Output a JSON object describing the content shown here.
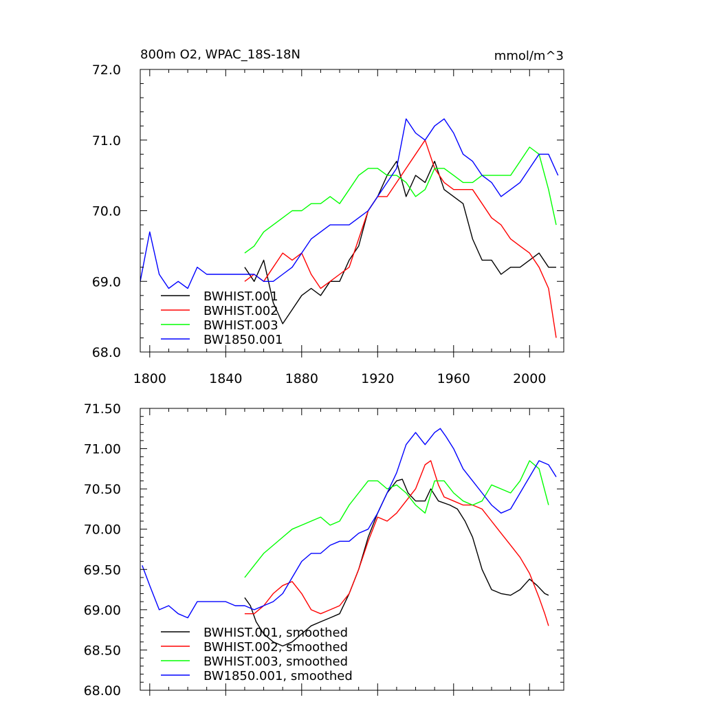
{
  "figure": {
    "title_left": "800m O2, WPAC_18S-18N",
    "title_right": "mmol/m^3"
  },
  "chart_data": [
    {
      "type": "line",
      "title": "800m O2, WPAC_18S-18N",
      "units": "mmol/m^3",
      "xlim": [
        1795,
        2018
      ],
      "ylim": [
        68.0,
        72.0
      ],
      "xticks": [
        1800,
        1840,
        1880,
        1920,
        1960,
        2000
      ],
      "xtick_labels": [
        "1800",
        "1840",
        "1880",
        "1920",
        "1960",
        "2000"
      ],
      "yticks": [
        68.0,
        69.0,
        70.0,
        71.0,
        72.0
      ],
      "ytick_labels": [
        "68.0",
        "69.0",
        "70.0",
        "71.0",
        "72.0"
      ],
      "legend_position": "lower-left",
      "series": [
        {
          "name": "BWHIST.001",
          "color": "#000000",
          "x": [
            1850,
            1855,
            1860,
            1865,
            1870,
            1875,
            1880,
            1885,
            1890,
            1895,
            1900,
            1905,
            1910,
            1915,
            1920,
            1925,
            1930,
            1935,
            1940,
            1945,
            1950,
            1955,
            1960,
            1965,
            1970,
            1975,
            1980,
            1985,
            1990,
            1995,
            2000,
            2005,
            2010,
            2014
          ],
          "values": [
            69.2,
            69.0,
            69.3,
            68.7,
            68.4,
            68.6,
            68.8,
            68.9,
            68.8,
            69.0,
            69.0,
            69.3,
            69.5,
            70.0,
            70.2,
            70.5,
            70.7,
            70.2,
            70.5,
            70.4,
            70.7,
            70.3,
            70.2,
            70.1,
            69.6,
            69.3,
            69.3,
            69.1,
            69.2,
            69.2,
            69.3,
            69.4,
            69.2,
            69.2
          ]
        },
        {
          "name": "BWHIST.002",
          "color": "#ff0000",
          "x": [
            1850,
            1855,
            1860,
            1865,
            1870,
            1875,
            1880,
            1885,
            1890,
            1895,
            1900,
            1905,
            1910,
            1915,
            1920,
            1925,
            1930,
            1935,
            1940,
            1945,
            1950,
            1955,
            1960,
            1965,
            1970,
            1975,
            1980,
            1985,
            1990,
            1995,
            2000,
            2005,
            2010,
            2014
          ],
          "values": [
            69.0,
            69.1,
            69.0,
            69.2,
            69.4,
            69.3,
            69.4,
            69.1,
            68.9,
            69.0,
            69.1,
            69.2,
            69.6,
            70.0,
            70.2,
            70.2,
            70.4,
            70.6,
            70.8,
            71.0,
            70.6,
            70.4,
            70.3,
            70.3,
            70.3,
            70.1,
            69.9,
            69.8,
            69.6,
            69.5,
            69.4,
            69.2,
            68.9,
            68.2
          ]
        },
        {
          "name": "BWHIST.003",
          "color": "#00ff00",
          "x": [
            1850,
            1855,
            1860,
            1865,
            1870,
            1875,
            1880,
            1885,
            1890,
            1895,
            1900,
            1905,
            1910,
            1915,
            1920,
            1925,
            1930,
            1935,
            1940,
            1945,
            1950,
            1955,
            1960,
            1965,
            1970,
            1975,
            1980,
            1985,
            1990,
            1995,
            2000,
            2005,
            2010,
            2014
          ],
          "values": [
            69.4,
            69.5,
            69.7,
            69.8,
            69.9,
            70.0,
            70.0,
            70.1,
            70.1,
            70.2,
            70.1,
            70.3,
            70.5,
            70.6,
            70.6,
            70.5,
            70.5,
            70.4,
            70.2,
            70.3,
            70.6,
            70.6,
            70.5,
            70.4,
            70.4,
            70.5,
            70.5,
            70.5,
            70.5,
            70.7,
            70.9,
            70.8,
            70.3,
            69.8
          ]
        },
        {
          "name": "BW1850.001",
          "color": "#0000ff",
          "x": [
            1795,
            1800,
            1805,
            1810,
            1815,
            1820,
            1825,
            1830,
            1835,
            1840,
            1845,
            1850,
            1855,
            1860,
            1865,
            1870,
            1875,
            1880,
            1885,
            1890,
            1895,
            1900,
            1905,
            1910,
            1915,
            1920,
            1925,
            1930,
            1935,
            1940,
            1945,
            1950,
            1955,
            1960,
            1965,
            1970,
            1975,
            1980,
            1985,
            1990,
            1995,
            2000,
            2005,
            2010,
            2015
          ],
          "values": [
            69.0,
            69.7,
            69.1,
            68.9,
            69.0,
            68.9,
            69.2,
            69.1,
            69.1,
            69.1,
            69.1,
            69.1,
            69.1,
            69.0,
            69.0,
            69.1,
            69.2,
            69.4,
            69.6,
            69.7,
            69.8,
            69.8,
            69.8,
            69.9,
            70.0,
            70.2,
            70.4,
            70.6,
            71.3,
            71.1,
            71.0,
            71.2,
            71.3,
            71.1,
            70.8,
            70.7,
            70.5,
            70.4,
            70.2,
            70.3,
            70.4,
            70.6,
            70.8,
            70.8,
            70.5
          ]
        }
      ]
    },
    {
      "type": "line",
      "title": "",
      "xlim": [
        1795,
        2018
      ],
      "ylim": [
        68.0,
        71.5
      ],
      "xticks": [
        1800,
        1840,
        1880,
        1920,
        1960,
        2000
      ],
      "yticks": [
        68.0,
        68.5,
        69.0,
        69.5,
        70.0,
        70.5,
        71.0,
        71.5
      ],
      "ytick_labels": [
        "68.00",
        "68.50",
        "69.00",
        "69.50",
        "70.00",
        "70.50",
        "71.00",
        "71.50"
      ],
      "legend_position": "lower-left",
      "series": [
        {
          "name": "BWHIST.001, smoothed",
          "color": "#000000",
          "x": [
            1850,
            1853,
            1856,
            1860,
            1865,
            1870,
            1875,
            1880,
            1885,
            1890,
            1895,
            1900,
            1905,
            1910,
            1915,
            1920,
            1925,
            1930,
            1933,
            1936,
            1940,
            1945,
            1948,
            1952,
            1958,
            1962,
            1966,
            1970,
            1975,
            1980,
            1985,
            1990,
            1995,
            2000,
            2004,
            2008,
            2010
          ],
          "values": [
            69.15,
            69.05,
            68.85,
            68.7,
            68.6,
            68.55,
            68.6,
            68.7,
            68.8,
            68.85,
            68.9,
            68.95,
            69.2,
            69.5,
            69.9,
            70.2,
            70.45,
            70.6,
            70.62,
            70.45,
            70.35,
            70.35,
            70.5,
            70.35,
            70.3,
            70.25,
            70.1,
            69.9,
            69.5,
            69.25,
            69.2,
            69.18,
            69.25,
            69.38,
            69.3,
            69.2,
            69.18
          ]
        },
        {
          "name": "BWHIST.002, smoothed",
          "color": "#ff0000",
          "x": [
            1850,
            1855,
            1860,
            1865,
            1870,
            1875,
            1880,
            1885,
            1890,
            1895,
            1900,
            1905,
            1910,
            1915,
            1920,
            1925,
            1930,
            1935,
            1940,
            1945,
            1948,
            1952,
            1955,
            1960,
            1965,
            1970,
            1975,
            1980,
            1985,
            1990,
            1995,
            2000,
            2005,
            2008,
            2010
          ],
          "values": [
            68.95,
            68.95,
            69.05,
            69.2,
            69.3,
            69.35,
            69.2,
            69.0,
            68.95,
            69.0,
            69.05,
            69.2,
            69.5,
            69.85,
            70.15,
            70.1,
            70.2,
            70.35,
            70.5,
            70.8,
            70.85,
            70.55,
            70.4,
            70.35,
            70.3,
            70.3,
            70.25,
            70.1,
            69.95,
            69.8,
            69.65,
            69.45,
            69.15,
            68.95,
            68.8
          ]
        },
        {
          "name": "BWHIST.003, smoothed",
          "color": "#00ff00",
          "x": [
            1850,
            1855,
            1860,
            1865,
            1870,
            1875,
            1880,
            1885,
            1890,
            1895,
            1900,
            1905,
            1910,
            1915,
            1920,
            1925,
            1930,
            1935,
            1940,
            1945,
            1950,
            1955,
            1960,
            1965,
            1970,
            1975,
            1980,
            1985,
            1990,
            1995,
            2000,
            2005,
            2010
          ],
          "values": [
            69.4,
            69.55,
            69.7,
            69.8,
            69.9,
            70.0,
            70.05,
            70.1,
            70.15,
            70.05,
            70.1,
            70.3,
            70.45,
            70.6,
            70.6,
            70.5,
            70.55,
            70.45,
            70.3,
            70.2,
            70.6,
            70.6,
            70.45,
            70.35,
            70.3,
            70.35,
            70.55,
            70.5,
            70.45,
            70.6,
            70.85,
            70.75,
            70.3
          ]
        },
        {
          "name": "BW1850.001, smoothed",
          "color": "#0000ff",
          "x": [
            1796,
            1800,
            1805,
            1810,
            1815,
            1820,
            1825,
            1830,
            1835,
            1840,
            1845,
            1850,
            1855,
            1860,
            1865,
            1870,
            1875,
            1880,
            1885,
            1890,
            1895,
            1900,
            1905,
            1910,
            1915,
            1920,
            1925,
            1930,
            1935,
            1940,
            1945,
            1950,
            1953,
            1956,
            1960,
            1965,
            1970,
            1975,
            1980,
            1985,
            1990,
            1995,
            2000,
            2005,
            2010,
            2014
          ],
          "values": [
            69.55,
            69.3,
            69.0,
            69.05,
            68.95,
            68.9,
            69.1,
            69.1,
            69.1,
            69.1,
            69.05,
            69.05,
            69.0,
            69.05,
            69.1,
            69.2,
            69.4,
            69.6,
            69.7,
            69.7,
            69.8,
            69.85,
            69.85,
            69.95,
            70.0,
            70.2,
            70.45,
            70.7,
            71.05,
            71.2,
            71.05,
            71.2,
            71.25,
            71.15,
            71.0,
            70.75,
            70.6,
            70.45,
            70.3,
            70.2,
            70.25,
            70.45,
            70.65,
            70.85,
            70.8,
            70.65
          ]
        }
      ]
    }
  ]
}
